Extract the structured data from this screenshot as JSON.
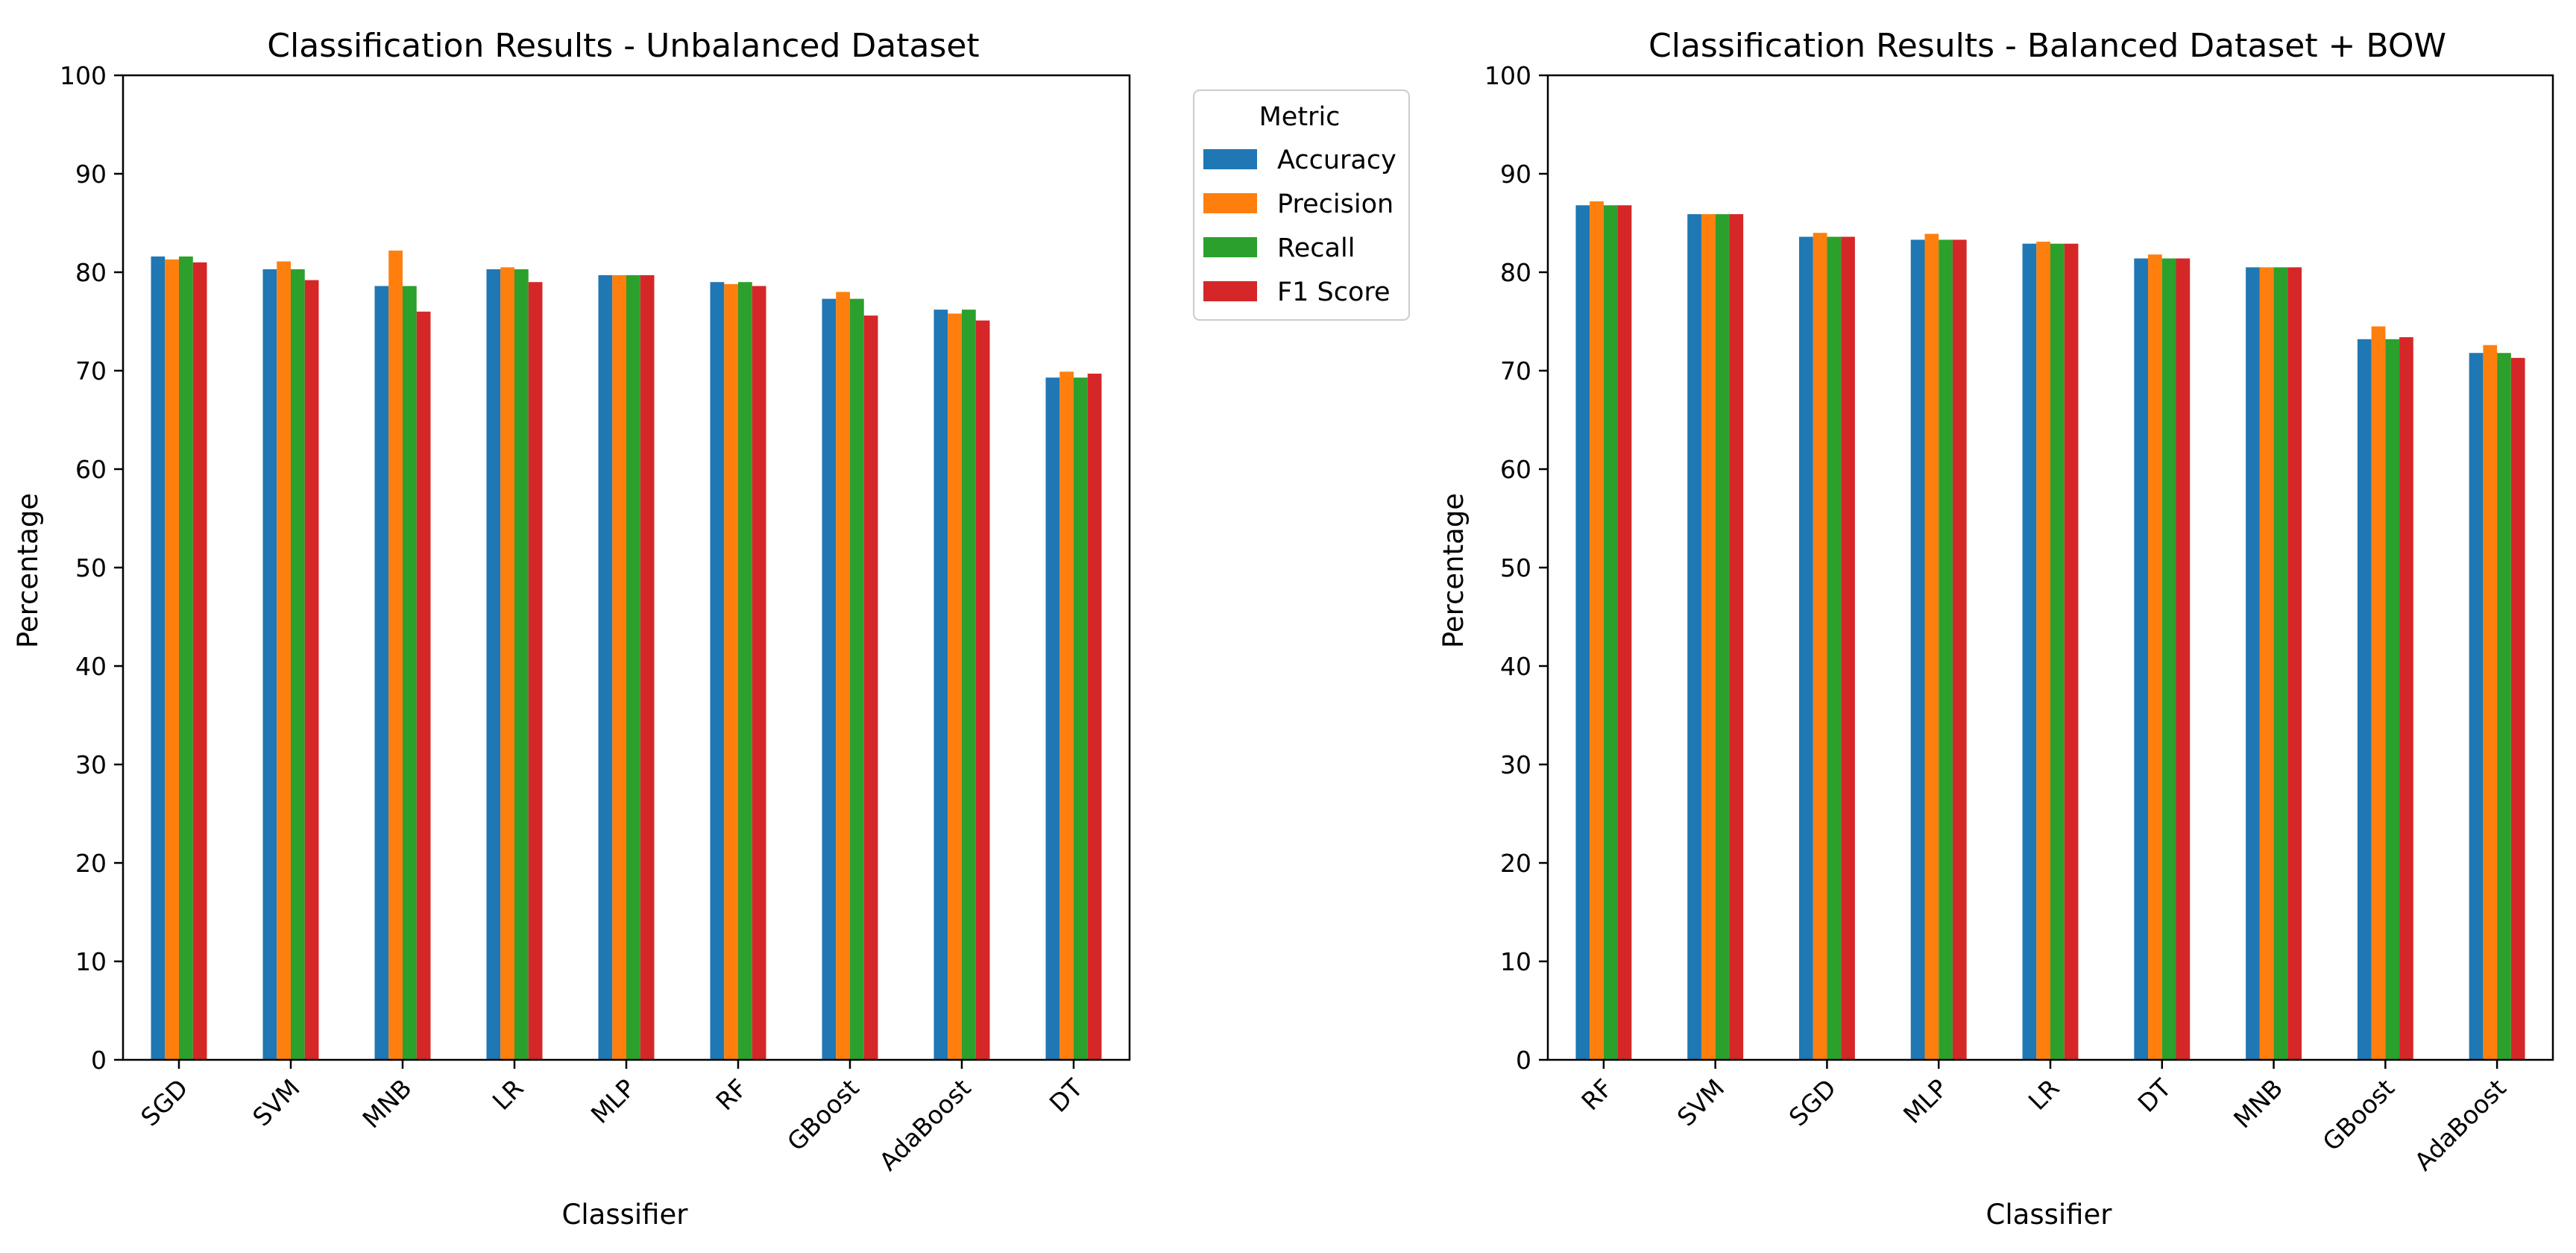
{
  "chart_data": [
    {
      "type": "bar",
      "title": "Classification Results - Unbalanced Dataset",
      "xlabel": "Classifier",
      "ylabel": "Percentage",
      "ylim": [
        0,
        100
      ],
      "yticks": [
        0,
        10,
        20,
        30,
        40,
        50,
        60,
        70,
        80,
        90,
        100
      ],
      "categories": [
        "SGD",
        "SVM",
        "MNB",
        "LR",
        "MLP",
        "RF",
        "GBoost",
        "AdaBoost",
        "DT"
      ],
      "series": [
        {
          "name": "Accuracy",
          "color": "#1f77b4",
          "values": [
            81.6,
            80.3,
            78.6,
            80.3,
            79.7,
            79.0,
            77.3,
            76.2,
            69.3
          ]
        },
        {
          "name": "Precision",
          "color": "#ff7f0e",
          "values": [
            81.3,
            81.1,
            82.2,
            80.5,
            79.7,
            78.8,
            78.0,
            75.8,
            69.9
          ]
        },
        {
          "name": "Recall",
          "color": "#2ca02c",
          "values": [
            81.6,
            80.3,
            78.6,
            80.3,
            79.7,
            79.0,
            77.3,
            76.2,
            69.3
          ]
        },
        {
          "name": "F1 Score",
          "color": "#d62728",
          "values": [
            81.0,
            79.2,
            76.0,
            79.0,
            79.7,
            78.6,
            75.6,
            75.1,
            69.7
          ]
        }
      ],
      "legend": {
        "title": "Metric",
        "placement": "upper-right-outside"
      }
    },
    {
      "type": "bar",
      "title": "Classification Results - Balanced Dataset + BOW",
      "xlabel": "Classifier",
      "ylabel": "Percentage",
      "ylim": [
        0,
        100
      ],
      "yticks": [
        0,
        10,
        20,
        30,
        40,
        50,
        60,
        70,
        80,
        90,
        100
      ],
      "categories": [
        "RF",
        "SVM",
        "SGD",
        "MLP",
        "LR",
        "DT",
        "MNB",
        "GBoost",
        "AdaBoost"
      ],
      "series": [
        {
          "name": "Accuracy",
          "color": "#1f77b4",
          "values": [
            86.8,
            85.9,
            83.6,
            83.3,
            82.9,
            81.4,
            80.5,
            73.2,
            71.8
          ]
        },
        {
          "name": "Precision",
          "color": "#ff7f0e",
          "values": [
            87.2,
            85.9,
            84.0,
            83.9,
            83.1,
            81.8,
            80.5,
            74.5,
            72.6
          ]
        },
        {
          "name": "Recall",
          "color": "#2ca02c",
          "values": [
            86.8,
            85.9,
            83.6,
            83.3,
            82.9,
            81.4,
            80.5,
            73.2,
            71.8
          ]
        },
        {
          "name": "F1 Score",
          "color": "#d62728",
          "values": [
            86.8,
            85.9,
            83.6,
            83.3,
            82.9,
            81.4,
            80.5,
            73.4,
            71.3
          ]
        }
      ]
    }
  ]
}
